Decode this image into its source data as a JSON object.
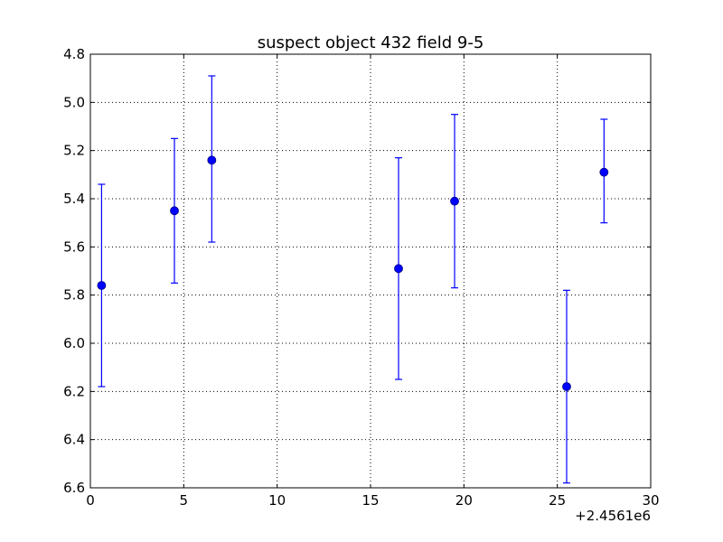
{
  "chart_data": {
    "type": "scatter",
    "title": "suspect object 432 field 9-5",
    "xlabel": "",
    "ylabel": "",
    "x_offset_label": "+2.4561e6",
    "xlim": [
      0,
      30
    ],
    "ylim": [
      4.8,
      6.6
    ],
    "y_inverted": true,
    "grid": true,
    "x_ticks": [
      0,
      5,
      10,
      15,
      20,
      25,
      30
    ],
    "x_tick_labels": [
      "0",
      "5",
      "10",
      "15",
      "20",
      "25",
      "30"
    ],
    "y_ticks": [
      4.8,
      5.0,
      5.2,
      5.4,
      5.6,
      5.8,
      6.0,
      6.2,
      6.4,
      6.6
    ],
    "y_tick_labels": [
      "4.8",
      "5.0",
      "5.2",
      "5.4",
      "5.6",
      "5.8",
      "6.0",
      "6.2",
      "6.4",
      "6.6"
    ],
    "series": [
      {
        "color": "#0000ff",
        "points": [
          {
            "x": 0.6,
            "y": 5.76,
            "y_low": 5.34,
            "y_high": 6.18
          },
          {
            "x": 4.5,
            "y": 5.45,
            "y_low": 5.15,
            "y_high": 5.75
          },
          {
            "x": 6.5,
            "y": 5.24,
            "y_low": 4.89,
            "y_high": 5.58
          },
          {
            "x": 16.5,
            "y": 5.69,
            "y_low": 5.23,
            "y_high": 6.15
          },
          {
            "x": 19.5,
            "y": 5.41,
            "y_low": 5.05,
            "y_high": 5.77
          },
          {
            "x": 25.5,
            "y": 6.18,
            "y_low": 5.78,
            "y_high": 6.58
          },
          {
            "x": 27.5,
            "y": 5.29,
            "y_low": 5.07,
            "y_high": 5.5
          }
        ]
      }
    ]
  }
}
